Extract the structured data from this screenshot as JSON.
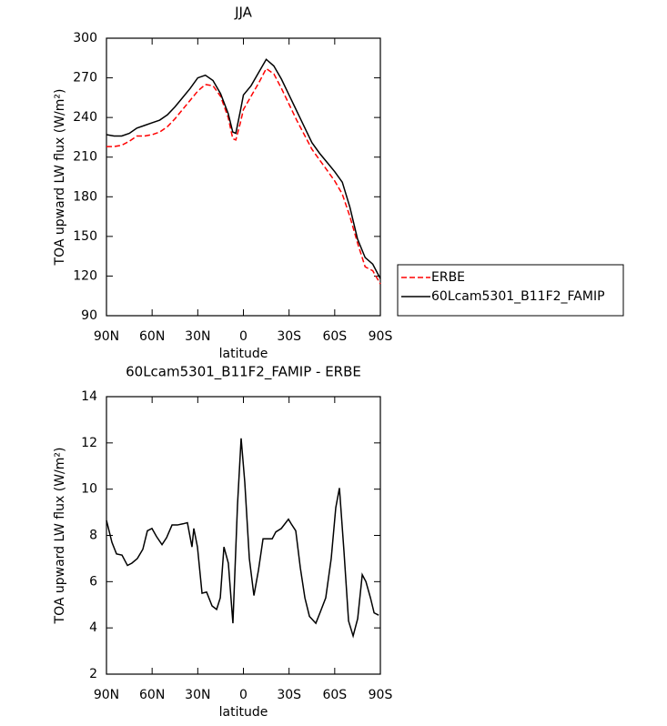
{
  "chart_data": [
    {
      "type": "line",
      "title": "JJA",
      "xlabel": "latitude",
      "ylabel": "TOA upward LW flux (W/m²)",
      "x": [
        90,
        85,
        80,
        75,
        70,
        65,
        60,
        55,
        50,
        45,
        40,
        35,
        30,
        25,
        20,
        15,
        10,
        7,
        5,
        2,
        0,
        -5,
        -10,
        -15,
        -20,
        -25,
        -30,
        -35,
        -40,
        -45,
        -50,
        -55,
        -60,
        -65,
        -70,
        -75,
        -80,
        -85,
        -90
      ],
      "xlim": [
        90,
        -90
      ],
      "xticks": [
        {
          "value": 90,
          "label": "90N"
        },
        {
          "value": 60,
          "label": "60N"
        },
        {
          "value": 30,
          "label": "30N"
        },
        0,
        {
          "value": -30,
          "label": "30S"
        },
        {
          "value": -60,
          "label": "60S"
        },
        {
          "value": -90,
          "label": "90S"
        }
      ],
      "ylim": [
        90,
        300
      ],
      "yticks": [
        90,
        120,
        150,
        180,
        210,
        240,
        270,
        300
      ],
      "legend": "right",
      "series": [
        {
          "name": "ERBE",
          "color": "#ff0000",
          "linestyle": "dashed",
          "values": [
            218,
            218,
            219,
            222,
            226,
            226,
            227,
            229,
            233,
            239,
            246,
            253,
            260,
            265,
            264,
            256,
            240,
            224,
            223,
            236,
            246,
            256,
            266,
            277,
            273,
            262,
            250,
            238,
            227,
            216,
            208,
            200,
            192,
            182,
            165,
            145,
            127,
            124,
            114
          ]
        },
        {
          "name": "60Lcam5301_B11F2_FAMIP",
          "color": "#000000",
          "linestyle": "solid",
          "values": [
            227,
            226,
            226,
            228,
            232,
            234,
            236,
            238,
            242,
            248,
            255,
            262,
            270,
            272,
            268,
            258,
            243,
            229,
            228,
            245,
            257,
            264,
            274,
            284,
            279,
            269,
            257,
            245,
            233,
            221,
            213,
            206,
            199,
            191,
            172,
            148,
            134,
            129,
            118
          ]
        }
      ]
    },
    {
      "type": "line",
      "title": "60Lcam5301_B11F2_FAMIP - ERBE",
      "xlabel": "latitude",
      "ylabel": "TOA upward LW flux (W/m²)",
      "x": [
        90,
        86.4,
        83.4,
        79.8,
        76.2,
        73.3,
        69.7,
        66.1,
        63.1,
        60.1,
        57.1,
        53.5,
        50.5,
        46.9,
        43.4,
        39.8,
        36.8,
        33.8,
        32.6,
        30.2,
        27.2,
        24.2,
        20.6,
        17.6,
        15.2,
        12.8,
        9.9,
        6.9,
        3.9,
        1.5,
        -0.9,
        -3.9,
        -6.9,
        -9.9,
        -12.9,
        -15.9,
        -18.9,
        -21.3,
        -24.9,
        -29.6,
        -31.4,
        -34.4,
        -37.4,
        -40.4,
        -43.4,
        -47.6,
        -50.6,
        -54.1,
        -57.7,
        -60.7,
        -63.1,
        -66.1,
        -69.1,
        -72.1,
        -75.1,
        -78.1,
        -80.5,
        -83.5,
        -85.9,
        -88.9
      ],
      "xlim": [
        90,
        -90
      ],
      "xticks": [
        {
          "value": 90,
          "label": "90N"
        },
        {
          "value": 60,
          "label": "60N"
        },
        {
          "value": 30,
          "label": "30N"
        },
        0,
        {
          "value": -30,
          "label": "30S"
        },
        {
          "value": -60,
          "label": "60S"
        },
        {
          "value": -90,
          "label": "90S"
        }
      ],
      "ylim": [
        2,
        14
      ],
      "yticks": [
        2,
        4,
        6,
        8,
        10,
        12,
        14
      ],
      "series": [
        {
          "color": "#000000",
          "linestyle": "solid",
          "values": [
            8.65,
            7.7,
            7.2,
            7.15,
            6.7,
            6.8,
            7.0,
            7.4,
            8.2,
            8.3,
            7.95,
            7.6,
            7.9,
            8.45,
            8.45,
            8.5,
            8.55,
            7.5,
            8.3,
            7.5,
            5.5,
            5.55,
            4.95,
            4.8,
            5.3,
            7.5,
            6.8,
            4.2,
            9.3,
            12.2,
            10.3,
            7.0,
            5.4,
            6.5,
            7.85,
            7.85,
            7.85,
            8.15,
            8.3,
            8.7,
            8.5,
            8.2,
            6.6,
            5.3,
            4.5,
            4.2,
            4.7,
            5.3,
            7.0,
            9.2,
            10.05,
            7.3,
            4.3,
            3.65,
            4.4,
            6.3,
            6.0,
            5.3,
            4.65,
            4.55
          ]
        }
      ]
    }
  ]
}
